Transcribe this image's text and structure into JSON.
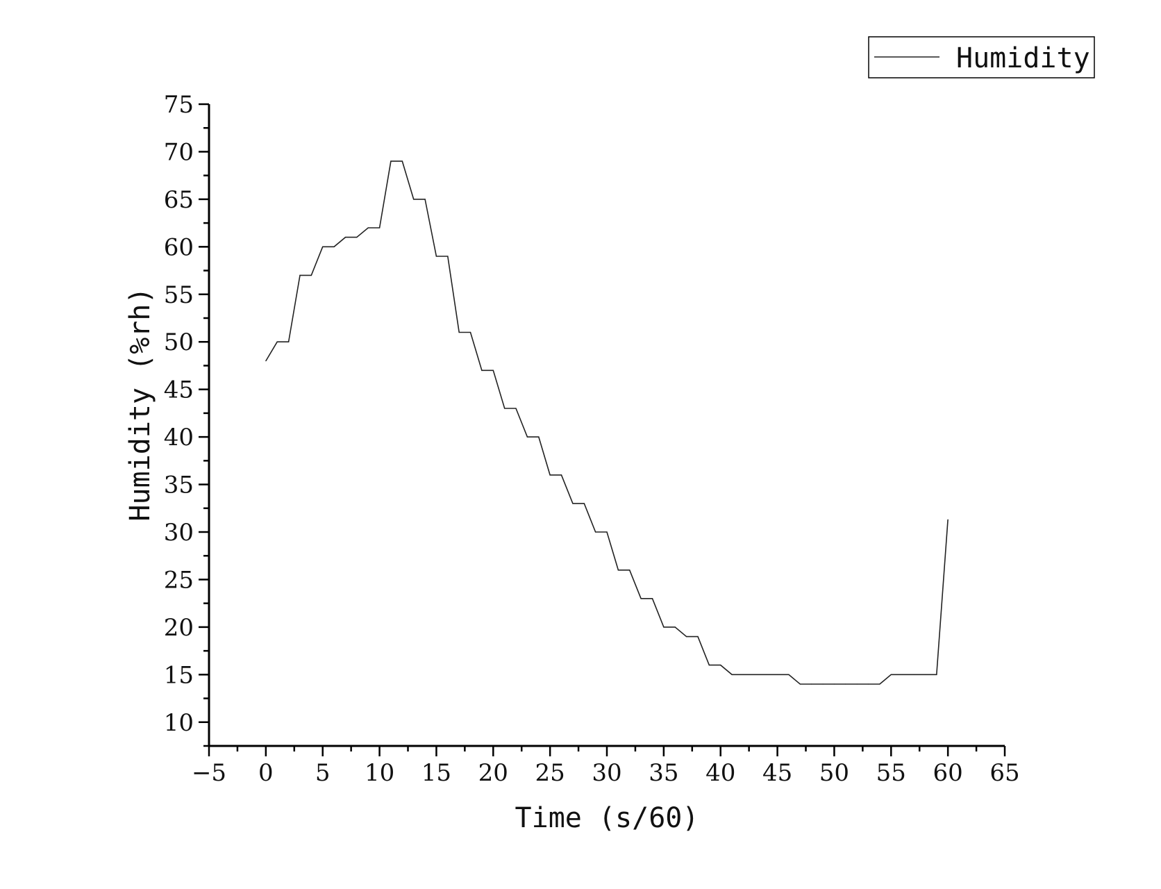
{
  "chart_data": {
    "type": "line",
    "title": "",
    "xlabel": "Time (s/60)",
    "ylabel": "Humidity (%rh)",
    "xlim": [
      -5,
      65
    ],
    "ylim": [
      7.5,
      75
    ],
    "x_ticks": [
      -5,
      0,
      5,
      10,
      15,
      20,
      25,
      30,
      35,
      40,
      45,
      50,
      55,
      60,
      65
    ],
    "x_tick_labels": [
      "−5",
      "0",
      "5",
      "10",
      "15",
      "20",
      "25",
      "30",
      "35",
      "40",
      "45",
      "50",
      "55",
      "60",
      "65"
    ],
    "y_ticks": [
      10,
      15,
      20,
      25,
      30,
      35,
      40,
      45,
      50,
      55,
      60,
      65,
      70,
      75
    ],
    "y_tick_labels": [
      "10",
      "15",
      "20",
      "25",
      "30",
      "35",
      "40",
      "45",
      "50",
      "55",
      "60",
      "65",
      "70",
      "75"
    ],
    "grid": false,
    "legend": {
      "position": "top-right",
      "entries": [
        "Humidity"
      ]
    },
    "series": [
      {
        "name": "Humidity",
        "color": "#222222",
        "points": [
          [
            0,
            48
          ],
          [
            1,
            50
          ],
          [
            2,
            50
          ],
          [
            3,
            57
          ],
          [
            4,
            57
          ],
          [
            5,
            60
          ],
          [
            6,
            60
          ],
          [
            7,
            61
          ],
          [
            8,
            61
          ],
          [
            9,
            62
          ],
          [
            10,
            62
          ],
          [
            11,
            69
          ],
          [
            12,
            69
          ],
          [
            13,
            65
          ],
          [
            14,
            65
          ],
          [
            15,
            59
          ],
          [
            16,
            59
          ],
          [
            17,
            51
          ],
          [
            18,
            51
          ],
          [
            19,
            47
          ],
          [
            20,
            47
          ],
          [
            21,
            43
          ],
          [
            22,
            43
          ],
          [
            23,
            40
          ],
          [
            24,
            40
          ],
          [
            25,
            36
          ],
          [
            26,
            36
          ],
          [
            27,
            33
          ],
          [
            28,
            33
          ],
          [
            29,
            30
          ],
          [
            30,
            30
          ],
          [
            31,
            26
          ],
          [
            32,
            26
          ],
          [
            33,
            23
          ],
          [
            34,
            23
          ],
          [
            35,
            20
          ],
          [
            36,
            20
          ],
          [
            37,
            19
          ],
          [
            38,
            19
          ],
          [
            39,
            16
          ],
          [
            40,
            16
          ],
          [
            41,
            15
          ],
          [
            42,
            15
          ],
          [
            43,
            15
          ],
          [
            44,
            15
          ],
          [
            45,
            15
          ],
          [
            46,
            15
          ],
          [
            47,
            14
          ],
          [
            48,
            14
          ],
          [
            49,
            14
          ],
          [
            50,
            14
          ],
          [
            51,
            14
          ],
          [
            52,
            14
          ],
          [
            53,
            14
          ],
          [
            54,
            14
          ],
          [
            55,
            15
          ],
          [
            56,
            15
          ],
          [
            57,
            15
          ],
          [
            58,
            15
          ],
          [
            59,
            15
          ],
          [
            60,
            31.3
          ]
        ]
      }
    ]
  }
}
